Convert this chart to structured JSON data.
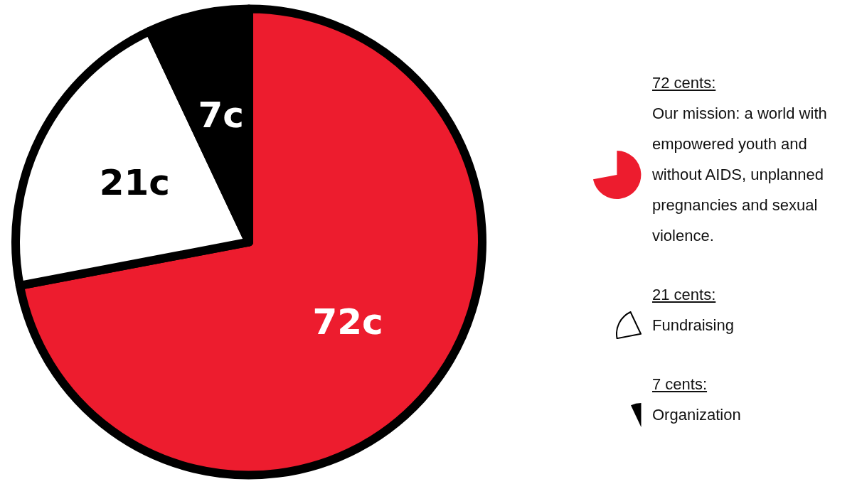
{
  "chart_data": {
    "type": "pie",
    "categories": [
      "Our mission: a world with empowered youth and without AIDS, unplanned pregnancies and sexual violence.",
      "Fundraising",
      "Organization"
    ],
    "values": [
      72,
      21,
      7
    ],
    "colors": [
      "#ed1c2e",
      "#ffffff",
      "#000000"
    ],
    "value_labels": [
      "72c",
      "21c",
      "7c"
    ],
    "annotations": [
      "72 cents:",
      "21 cents:",
      "7 cents:"
    ],
    "legend": "right"
  }
}
